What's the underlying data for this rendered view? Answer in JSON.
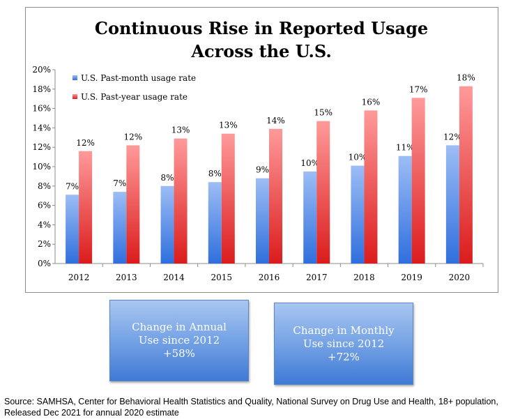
{
  "chart_data": {
    "type": "bar",
    "title_line1": "Continuous Rise in Reported Usage",
    "title_line2": "Across the U.S.",
    "xlabel": "",
    "ylabel": "",
    "categories": [
      "2012",
      "2013",
      "2014",
      "2015",
      "2016",
      "2017",
      "2018",
      "2019",
      "2020"
    ],
    "series": [
      {
        "name": "U.S. Past-month usage rate",
        "color": "#4f86e6",
        "values": [
          7.1,
          7.4,
          8.0,
          8.4,
          8.8,
          9.5,
          10.1,
          11.1,
          12.2
        ],
        "labels": [
          "7%",
          "7%",
          "8%",
          "8%",
          "9%",
          "10%",
          "10%",
          "11%",
          "12%"
        ]
      },
      {
        "name": "U.S. Past-year usage rate",
        "color": "#e94646",
        "values": [
          11.6,
          12.2,
          12.9,
          13.4,
          13.9,
          14.7,
          15.8,
          17.1,
          18.3
        ],
        "labels": [
          "12%",
          "12%",
          "13%",
          "13%",
          "14%",
          "15%",
          "16%",
          "17%",
          "18%"
        ]
      }
    ],
    "ylim": [
      0,
      20
    ],
    "yticks": [
      "0%",
      "2%",
      "4%",
      "6%",
      "8%",
      "10%",
      "12%",
      "14%",
      "16%",
      "18%",
      "20%"
    ],
    "grid": false,
    "legend_position": "top-left"
  },
  "callouts": {
    "annual": {
      "line1": "Change in Annual",
      "line2": "Use since 2012",
      "value": "+58%"
    },
    "monthly": {
      "line1": "Change in Monthly",
      "line2": "Use since 2012",
      "value": "+72%"
    }
  },
  "source": "Source: SAMHSA, Center for Behavioral Health Statistics and Quality, National Survey on Drug Use and Health, 18+ population, Released Dec 2021 for annual 2020 estimate"
}
